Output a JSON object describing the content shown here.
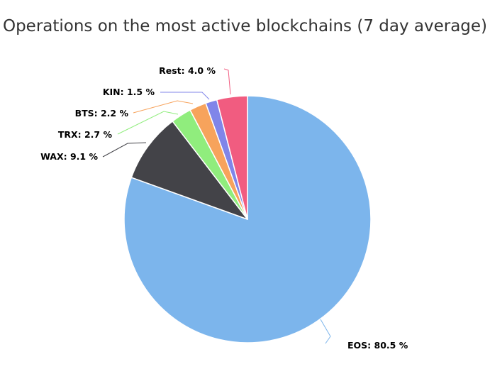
{
  "chart_data": {
    "type": "pie",
    "title": "Operations on the most active blockchains (7 day average)",
    "categories": [
      "EOS",
      "WAX",
      "TRX",
      "BTS",
      "KIN",
      "Rest"
    ],
    "values": [
      80.5,
      9.1,
      2.7,
      2.2,
      1.5,
      4.0
    ],
    "unit": "%",
    "labels": [
      "EOS: 80.5 %",
      "WAX: 9.1 %",
      "TRX: 2.7 %",
      "BTS: 2.2 %",
      "KIN: 1.5 %",
      "Rest: 4.0 %"
    ],
    "colors": [
      "#7cb5ec",
      "#434348",
      "#90ed7d",
      "#f7a35c",
      "#8085e9",
      "#f15c80"
    ],
    "legend": "none",
    "start_angle": "12 o'clock, clockwise"
  }
}
